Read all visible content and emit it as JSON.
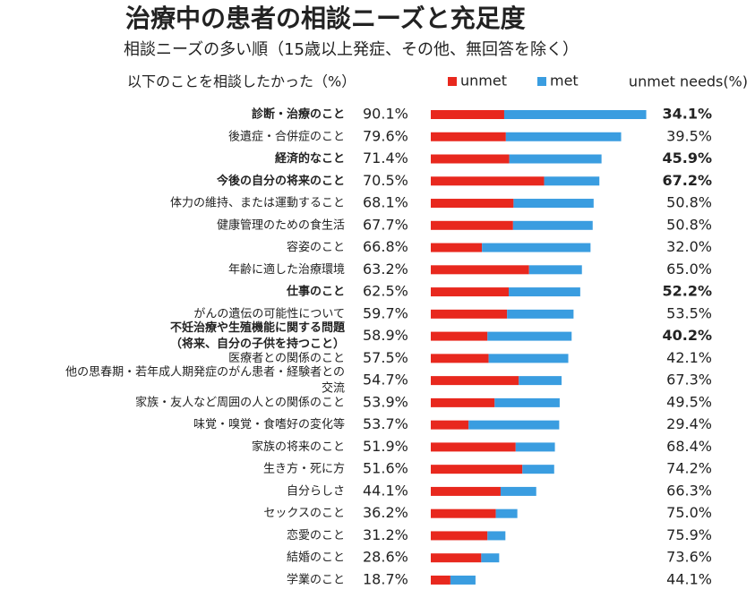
{
  "chart_data": {
    "type": "stacked_bar_horizontal",
    "title": "治療中の患者の相談ニーズと充足度",
    "subtitle": "相談ニーズの多い順（15歳以上発症、その他、無回答を除く）",
    "category_header": "以下のことを相談したかった（%）",
    "unmet_header": "unmet needs(%)",
    "categories": [
      [
        "診断・治療のこと"
      ],
      [
        "後遺症・合併症のこと"
      ],
      [
        "経済的なこと"
      ],
      [
        "今後の自分の将来のこと"
      ],
      [
        "体力の維持、または運動すること"
      ],
      [
        "健康管理のための食生活"
      ],
      [
        "容姿のこと"
      ],
      [
        "年齢に適した治療環境"
      ],
      [
        "仕事のこと"
      ],
      [
        "がんの遺伝の可能性について"
      ],
      [
        "不妊治療や生殖機能に関する問題",
        "（将来、自分の子供を持つこと）"
      ],
      [
        "医療者との関係のこと"
      ],
      [
        "他の思春期・若年成人期発症のがん患者・経験者との",
        "交流"
      ],
      [
        "家族・友人など周囲の人との関係のこと"
      ],
      [
        "味覚・嗅覚・食嗜好の変化等"
      ],
      [
        "家族の将来のこと"
      ],
      [
        "生き方・死に方"
      ],
      [
        "自分らしさ"
      ],
      [
        "セックスのこと"
      ],
      [
        "恋愛のこと"
      ],
      [
        "結婚のこと"
      ],
      [
        "学業のこと"
      ]
    ],
    "series": [
      {
        "name": "unmet",
        "color": "#e8281e",
        "values": [
          30.7,
          31.4,
          32.8,
          47.4,
          34.6,
          34.4,
          21.4,
          41.1,
          32.6,
          31.9,
          23.7,
          24.2,
          36.8,
          26.7,
          15.8,
          35.5,
          38.3,
          29.2,
          27.2,
          23.7,
          21.1,
          8.2
        ]
      },
      {
        "name": "met",
        "color": "#3a9de0",
        "values": [
          59.4,
          48.2,
          38.6,
          23.1,
          33.5,
          33.3,
          45.4,
          22.1,
          29.9,
          27.8,
          35.2,
          33.3,
          17.9,
          27.2,
          37.9,
          16.4,
          13.3,
          14.9,
          9.0,
          7.5,
          7.5,
          10.5
        ]
      }
    ],
    "totals": [
      90.1,
      79.6,
      71.4,
      70.5,
      68.1,
      67.7,
      66.8,
      63.2,
      62.5,
      59.7,
      58.9,
      57.5,
      54.7,
      53.9,
      53.7,
      51.9,
      51.6,
      44.1,
      36.2,
      31.2,
      28.6,
      18.7
    ],
    "totals_labels": [
      "90.1%",
      "79.6%",
      "71.4%",
      "70.5%",
      "68.1%",
      "67.7%",
      "66.8%",
      "63.2%",
      "62.5%",
      "59.7%",
      "58.9%",
      "57.5%",
      "54.7%",
      "53.9%",
      "53.7%",
      "51.9%",
      "51.6%",
      "44.1%",
      "36.2%",
      "31.2%",
      "28.6%",
      "18.7%"
    ],
    "unmet_needs": [
      34.1,
      39.5,
      45.9,
      67.2,
      50.8,
      50.8,
      32.0,
      65.0,
      52.2,
      53.5,
      40.2,
      42.1,
      67.3,
      49.5,
      29.4,
      68.4,
      74.2,
      66.3,
      75.0,
      75.9,
      73.6,
      44.1
    ],
    "unmet_needs_labels": [
      "34.1%",
      "39.5%",
      "45.9%",
      "67.2%",
      "50.8%",
      "50.8%",
      "32.0%",
      "65.0%",
      "52.2%",
      "53.5%",
      "40.2%",
      "42.1%",
      "67.3%",
      "49.5%",
      "29.4%",
      "68.4%",
      "74.2%",
      "66.3%",
      "75.0%",
      "75.9%",
      "73.6%",
      "44.1%"
    ],
    "highlighted": [
      0,
      2,
      3,
      8,
      10
    ],
    "highlight_color": "#1a3a7a",
    "highlight_value_color": "#e03030",
    "xlim": [
      0,
      100
    ]
  }
}
